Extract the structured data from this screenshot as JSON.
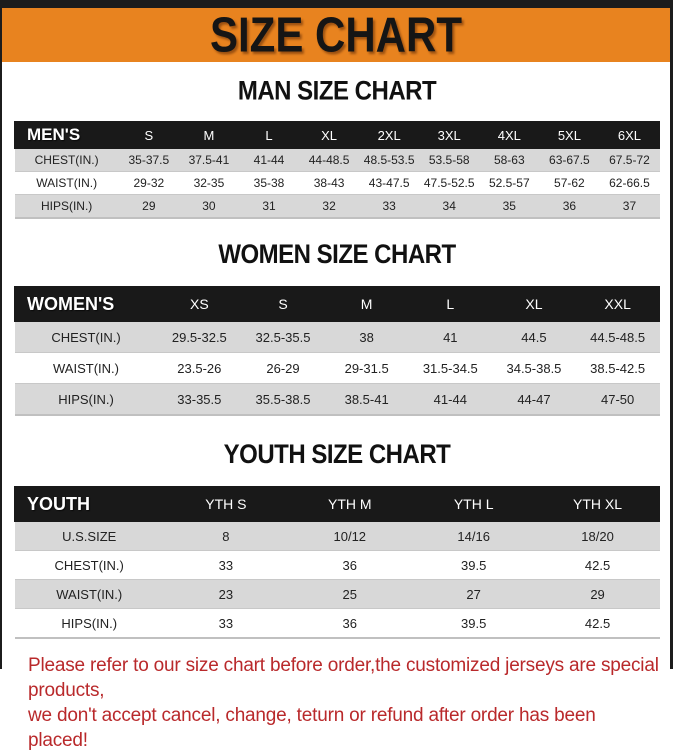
{
  "page": {
    "title_banner": "SIZE CHART",
    "note_line1": "Please refer to our size chart before order,the customized jerseys are special products,",
    "note_line2": "we don't accept cancel, change, teturn or refund after order has been placed!",
    "colors": {
      "banner_bg": "#e8831f",
      "banner_text": "#151515",
      "table_header_bg": "#191919",
      "table_header_text": "#ffffff",
      "row_stripe_bg": "#d8d8d8",
      "note_text": "#b9292b",
      "frame_border": "#1c1c1c"
    }
  },
  "sections": [
    {
      "heading": "MAN SIZE CHART",
      "header_label": "MEN'S",
      "columns": [
        "S",
        "M",
        "L",
        "XL",
        "2XL",
        "3XL",
        "4XL",
        "5XL",
        "6XL"
      ],
      "rows": [
        {
          "label": "CHEST(IN.)",
          "values": [
            "35-37.5",
            "37.5-41",
            "41-44",
            "44-48.5",
            "48.5-53.5",
            "53.5-58",
            "58-63",
            "63-67.5",
            "67.5-72"
          ]
        },
        {
          "label": "WAIST(IN.)",
          "values": [
            "29-32",
            "32-35",
            "35-38",
            "38-43",
            "43-47.5",
            "47.5-52.5",
            "52.5-57",
            "57-62",
            "62-66.5"
          ]
        },
        {
          "label": "HIPS(IN.)",
          "values": [
            "29",
            "30",
            "31",
            "32",
            "33",
            "34",
            "35",
            "36",
            "37"
          ]
        }
      ]
    },
    {
      "heading": "WOMEN SIZE CHART",
      "header_label": "WOMEN'S",
      "columns": [
        "XS",
        "S",
        "M",
        "L",
        "XL",
        "XXL"
      ],
      "rows": [
        {
          "label": "CHEST(IN.)",
          "values": [
            "29.5-32.5",
            "32.5-35.5",
            "38",
            "41",
            "44.5",
            "44.5-48.5"
          ]
        },
        {
          "label": "WAIST(IN.)",
          "values": [
            "23.5-26",
            "26-29",
            "29-31.5",
            "31.5-34.5",
            "34.5-38.5",
            "38.5-42.5"
          ]
        },
        {
          "label": "HIPS(IN.)",
          "values": [
            "33-35.5",
            "35.5-38.5",
            "38.5-41",
            "41-44",
            "44-47",
            "47-50"
          ]
        }
      ]
    },
    {
      "heading": "YOUTH SIZE CHART",
      "header_label": "YOUTH",
      "columns": [
        "YTH S",
        "YTH M",
        "YTH L",
        "YTH XL"
      ],
      "rows": [
        {
          "label": "U.S.SIZE",
          "values": [
            "8",
            "10/12",
            "14/16",
            "18/20"
          ]
        },
        {
          "label": "CHEST(IN.)",
          "values": [
            "33",
            "36",
            "39.5",
            "42.5"
          ]
        },
        {
          "label": "WAIST(IN.)",
          "values": [
            "23",
            "25",
            "27",
            "29"
          ]
        },
        {
          "label": "HIPS(IN.)",
          "values": [
            "33",
            "36",
            "39.5",
            "42.5"
          ]
        }
      ]
    }
  ]
}
